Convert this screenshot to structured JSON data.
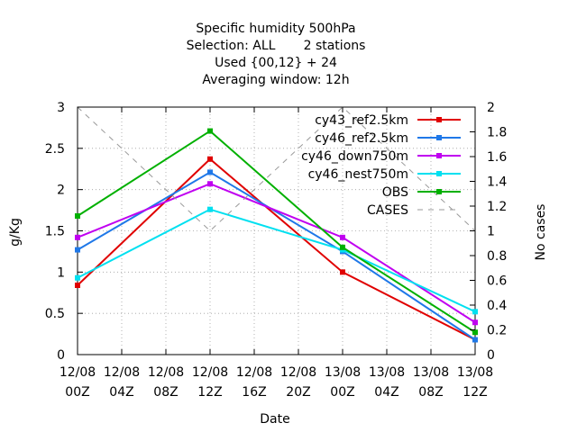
{
  "chart_data": {
    "type": "line",
    "title_lines": [
      "Specific humidity 500hPa",
      "Selection: ALL       2 stations",
      "Used {00,12} + 24",
      "Averaging window: 12h"
    ],
    "xlabel": "Date",
    "ylabel": "g/Kg",
    "y2label": "No cases",
    "x_ticks": [
      {
        "x": 0,
        "day": "12/08",
        "hour": "00Z"
      },
      {
        "x": 4,
        "day": "12/08",
        "hour": "04Z"
      },
      {
        "x": 8,
        "day": "12/08",
        "hour": "08Z"
      },
      {
        "x": 12,
        "day": "12/08",
        "hour": "12Z"
      },
      {
        "x": 16,
        "day": "12/08",
        "hour": "16Z"
      },
      {
        "x": 20,
        "day": "12/08",
        "hour": "20Z"
      },
      {
        "x": 24,
        "day": "13/08",
        "hour": "00Z"
      },
      {
        "x": 28,
        "day": "13/08",
        "hour": "04Z"
      },
      {
        "x": 32,
        "day": "13/08",
        "hour": "08Z"
      },
      {
        "x": 36,
        "day": "13/08",
        "hour": "12Z"
      }
    ],
    "xlim": [
      0,
      36
    ],
    "ylim": [
      0,
      3
    ],
    "y_ticks": [
      "0",
      "0.5",
      "1",
      "1.5",
      "2",
      "2.5",
      "3"
    ],
    "y2lim": [
      0,
      2
    ],
    "y2_ticks": [
      "0",
      "0.2",
      "0.4",
      "0.6",
      "0.8",
      "1",
      "1.2",
      "1.4",
      "1.6",
      "1.8",
      "2"
    ],
    "grid": true,
    "legend_position": "top-right",
    "series": [
      {
        "name": "cy43_ref2.5km",
        "color": "#e00000",
        "axis": "y",
        "x": [
          0,
          12,
          24,
          36
        ],
        "values": [
          0.84,
          2.37,
          1.0,
          0.18
        ]
      },
      {
        "name": "cy46_ref2.5km",
        "color": "#1f78e8",
        "axis": "y",
        "x": [
          0,
          12,
          24,
          36
        ],
        "values": [
          1.27,
          2.21,
          1.25,
          0.18
        ]
      },
      {
        "name": "cy46_down750m",
        "color": "#c000f0",
        "axis": "y",
        "x": [
          0,
          12,
          24,
          36
        ],
        "values": [
          1.42,
          2.07,
          1.42,
          0.39
        ]
      },
      {
        "name": "cy46_nest750m",
        "color": "#00e0f0",
        "axis": "y",
        "x": [
          0,
          12,
          24,
          36
        ],
        "values": [
          0.93,
          1.76,
          1.27,
          0.52
        ]
      },
      {
        "name": "OBS",
        "color": "#00b000",
        "axis": "y",
        "x": [
          0,
          12,
          24,
          36
        ],
        "values": [
          1.68,
          2.71,
          1.3,
          0.27
        ]
      },
      {
        "name": "CASES",
        "color": "#999999",
        "axis": "y2",
        "dashed": true,
        "x": [
          0,
          12,
          24,
          36
        ],
        "values": [
          2,
          1,
          2,
          1
        ]
      }
    ]
  }
}
